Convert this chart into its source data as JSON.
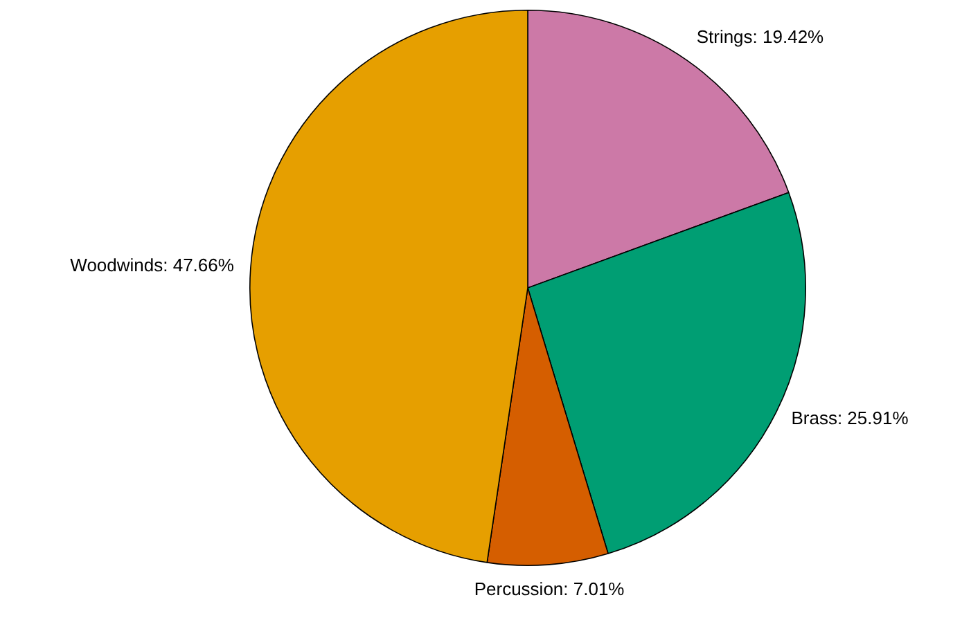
{
  "chart_data": {
    "type": "pie",
    "categories": [
      "Strings",
      "Brass",
      "Percussion",
      "Woodwinds"
    ],
    "values": [
      19.42,
      25.91,
      7.01,
      47.66
    ],
    "colors": [
      "#cc79a7",
      "#009e73",
      "#d55e00",
      "#e69f00"
    ],
    "value_labels": [
      "19.42%",
      "25.91%",
      "7.01%",
      "47.66%"
    ],
    "legend": false
  }
}
